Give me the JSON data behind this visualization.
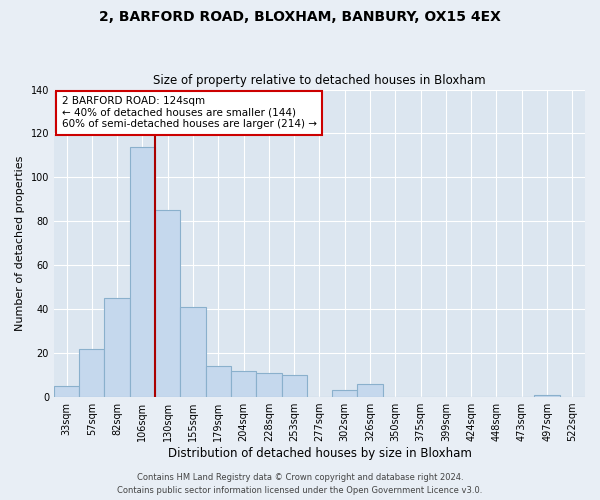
{
  "title": "2, BARFORD ROAD, BLOXHAM, BANBURY, OX15 4EX",
  "subtitle": "Size of property relative to detached houses in Bloxham",
  "xlabel": "Distribution of detached houses by size in Bloxham",
  "ylabel": "Number of detached properties",
  "bin_labels": [
    "33sqm",
    "57sqm",
    "82sqm",
    "106sqm",
    "130sqm",
    "155sqm",
    "179sqm",
    "204sqm",
    "228sqm",
    "253sqm",
    "277sqm",
    "302sqm",
    "326sqm",
    "350sqm",
    "375sqm",
    "399sqm",
    "424sqm",
    "448sqm",
    "473sqm",
    "497sqm",
    "522sqm"
  ],
  "bar_values": [
    5,
    22,
    45,
    114,
    85,
    41,
    14,
    12,
    11,
    10,
    0,
    3,
    6,
    0,
    0,
    0,
    0,
    0,
    0,
    1,
    0
  ],
  "bar_color": "#c5d8ed",
  "bar_edge_color": "#8ab0cc",
  "ylim": [
    0,
    140
  ],
  "yticks": [
    0,
    20,
    40,
    60,
    80,
    100,
    120,
    140
  ],
  "property_line_x": 4,
  "property_line_color": "#aa0000",
  "annotation_text": "2 BARFORD ROAD: 124sqm\n← 40% of detached houses are smaller (144)\n60% of semi-detached houses are larger (214) →",
  "annotation_box_color": "#ffffff",
  "annotation_box_edge_color": "#cc0000",
  "footer_line1": "Contains HM Land Registry data © Crown copyright and database right 2024.",
  "footer_line2": "Contains public sector information licensed under the Open Government Licence v3.0.",
  "background_color": "#e8eef5",
  "plot_background_color": "#dce6f0",
  "grid_color": "#ffffff",
  "title_fontsize": 10,
  "subtitle_fontsize": 8.5,
  "ylabel_fontsize": 8,
  "xlabel_fontsize": 8.5,
  "tick_fontsize": 7,
  "annot_fontsize": 7.5,
  "footer_fontsize": 6
}
